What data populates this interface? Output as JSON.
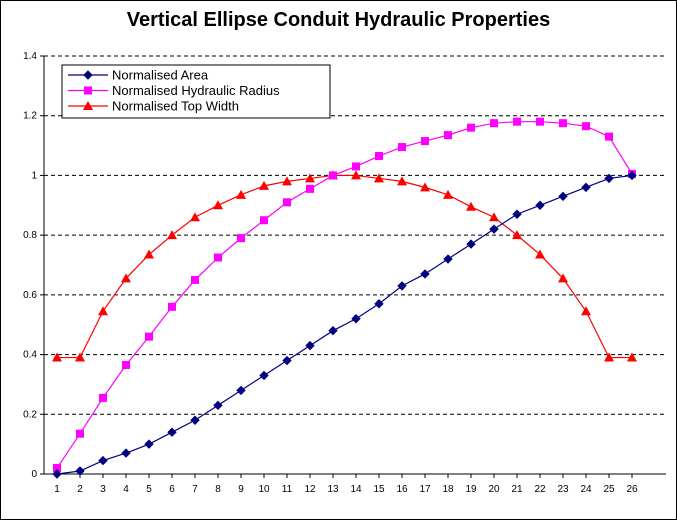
{
  "chart_data": {
    "type": "line",
    "title": "Vertical Ellipse Conduit Hydraulic Properties",
    "xlabel": "",
    "ylabel": "",
    "ylim": [
      0,
      1.4
    ],
    "yticks": [
      "0",
      "0.2",
      "0.4",
      "0.6",
      "0.8",
      "1",
      "1.2",
      "1.4"
    ],
    "categories": [
      "1",
      "2",
      "3",
      "4",
      "5",
      "6",
      "7",
      "8",
      "9",
      "10",
      "11",
      "12",
      "13",
      "14",
      "15",
      "16",
      "17",
      "18",
      "19",
      "20",
      "21",
      "22",
      "23",
      "24",
      "25",
      "26"
    ],
    "grid": "horizontal dashed",
    "legend_position": "top-left",
    "series": [
      {
        "name": "Normalised Area",
        "color": "#000080",
        "marker": "diamond",
        "values": [
          0,
          0.01,
          0.045,
          0.07,
          0.1,
          0.14,
          0.18,
          0.23,
          0.28,
          0.33,
          0.38,
          0.43,
          0.48,
          0.52,
          0.57,
          0.63,
          0.67,
          0.72,
          0.77,
          0.82,
          0.87,
          0.9,
          0.93,
          0.96,
          0.99,
          1.0
        ]
      },
      {
        "name": "Normalised Hydraulic Radius",
        "color": "#ff00ff",
        "marker": "square",
        "values": [
          0.02,
          0.135,
          0.255,
          0.365,
          0.46,
          0.56,
          0.65,
          0.725,
          0.79,
          0.85,
          0.91,
          0.955,
          1.0,
          1.03,
          1.065,
          1.095,
          1.115,
          1.135,
          1.16,
          1.175,
          1.18,
          1.18,
          1.175,
          1.165,
          1.13,
          1.005
        ]
      },
      {
        "name": "Normalised Top Width",
        "color": "#ff0000",
        "marker": "triangle",
        "values": [
          0.39,
          0.39,
          0.545,
          0.655,
          0.735,
          0.8,
          0.86,
          0.9,
          0.935,
          0.965,
          0.98,
          0.99,
          1.0,
          1.0,
          0.99,
          0.98,
          0.96,
          0.935,
          0.895,
          0.86,
          0.8,
          0.735,
          0.655,
          0.545,
          0.39,
          0.39
        ]
      }
    ]
  }
}
